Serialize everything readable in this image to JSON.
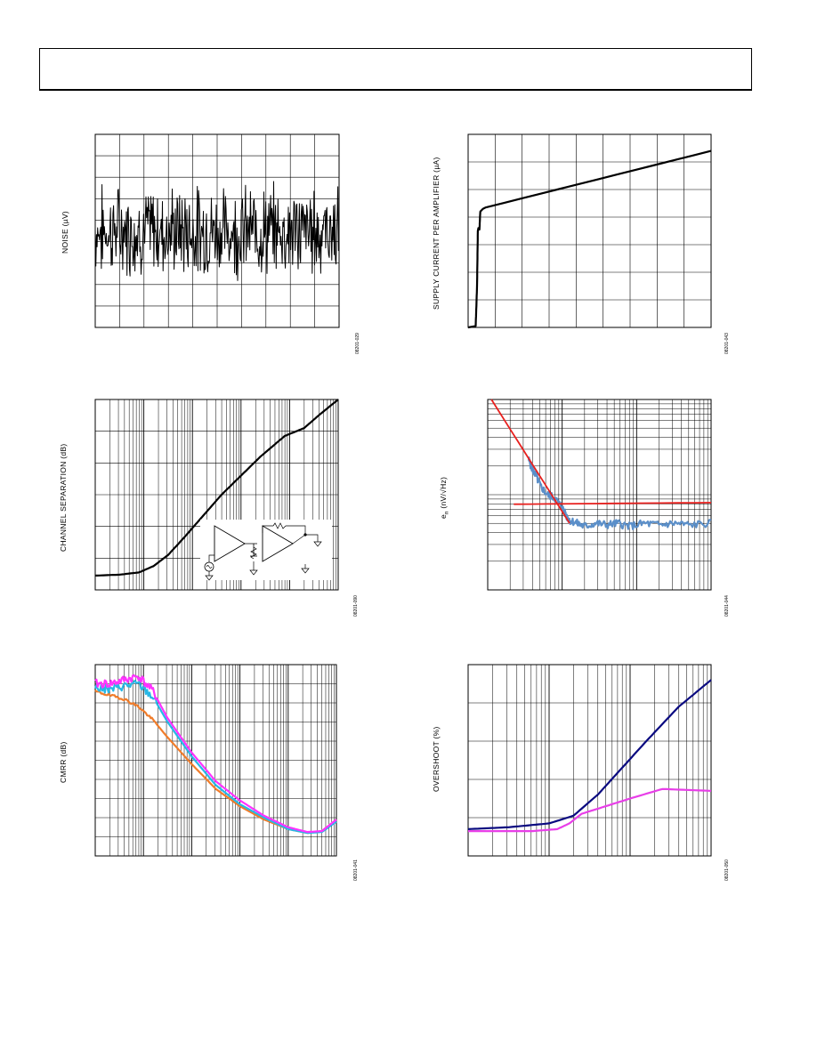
{
  "chart_data": [
    {
      "id": "noise",
      "type": "line",
      "ylabel": "NOISE (µV)",
      "xlabel": "",
      "figure_id": "08201-029",
      "grid": "linear",
      "x_divisions": 10,
      "y_divisions": 9,
      "xlim": [
        0,
        10
      ],
      "ylim": [
        -4.5,
        4.5
      ],
      "noise": {
        "seed": 7,
        "points": 400,
        "amplitude": 1.6
      },
      "series": [
        {
          "color": "#000000",
          "values": []
        }
      ]
    },
    {
      "id": "supply_current",
      "type": "line",
      "ylabel": "SUPPLY CURRENT PER AMPLIFIER (µA)",
      "xlabel": "",
      "figure_id": "08201-043",
      "grid": "linear",
      "x_divisions": 9,
      "y_divisions": 7,
      "xlim": [
        0,
        9
      ],
      "ylim": [
        0,
        7
      ],
      "series": [
        {
          "color": "#000000",
          "x": [
            0,
            0.28,
            0.33,
            0.36,
            0.38,
            0.42,
            0.45,
            0.55,
            0.65,
            9
          ],
          "y": [
            0,
            0.05,
            1.5,
            3.5,
            3.6,
            3.55,
            4.2,
            4.3,
            4.35,
            6.4
          ]
        }
      ]
    },
    {
      "id": "channel_separation",
      "type": "line",
      "ylabel": "CHANNEL SEPARATION (dB)",
      "xlabel": "",
      "figure_id": "08201-090",
      "grid": "log",
      "x_decades": 5,
      "y_divisions": 6,
      "xlim": [
        0,
        5
      ],
      "ylim": [
        0,
        6
      ],
      "series": [
        {
          "color": "#000000",
          "x": [
            0,
            0.5,
            0.9,
            1.2,
            1.5,
            1.8,
            2.2,
            2.6,
            3.0,
            3.4,
            3.9,
            4.3,
            4.6,
            5.0
          ],
          "y": [
            0.45,
            0.48,
            0.55,
            0.75,
            1.1,
            1.6,
            2.3,
            3.0,
            3.6,
            4.2,
            4.85,
            5.1,
            5.5,
            6.0
          ]
        }
      ],
      "inset": "op-amp-test-circuit"
    },
    {
      "id": "voltage_noise_density",
      "type": "line",
      "ylabel": "e_n (nV/√Hz)",
      "ylabel_main": "e",
      "ylabel_sub": "n",
      "ylabel_rest": " (nV/√Hz)",
      "xlabel": "",
      "figure_id": "08201-044",
      "grid": "log",
      "x_decades": 3,
      "y_log_decades": 2,
      "xlim": [
        0,
        3
      ],
      "ylim": [
        0,
        6
      ],
      "series": [
        {
          "color": "#5b8fc9",
          "x": [
            0.55,
            0.6,
            0.65,
            0.7,
            0.8,
            0.9,
            1.0,
            1.05,
            1.1,
            1.2,
            1.3,
            1.45,
            1.6,
            1.75,
            1.9,
            2.1,
            2.3,
            2.5,
            2.7,
            3.0
          ],
          "y": [
            4.1,
            3.8,
            3.6,
            3.3,
            3.0,
            2.9,
            2.6,
            2.35,
            2.2,
            2.1,
            2.0,
            2.1,
            2.05,
            2.1,
            2.0,
            2.1,
            2.05,
            2.1,
            2.05,
            2.1
          ]
        },
        {
          "color": "#e8201e",
          "x": [
            0.05,
            1.1
          ],
          "y": [
            6.0,
            2.1
          ]
        },
        {
          "color": "#e8201e",
          "x": [
            0.35,
            3.0
          ],
          "y": [
            2.7,
            2.75
          ]
        }
      ]
    },
    {
      "id": "cmrr",
      "type": "line",
      "ylabel": "CMRR (dB)",
      "xlabel": "",
      "figure_id": "08201-041",
      "grid": "log",
      "x_decades": 5,
      "y_divisions": 10,
      "xlim": [
        0,
        5
      ],
      "ylim": [
        0,
        10
      ],
      "series": [
        {
          "color": "#f07c2a",
          "x": [
            0,
            0.3,
            0.6,
            0.9,
            1.2,
            1.5,
            2.0,
            2.5,
            3.0,
            3.5,
            4.0,
            4.4,
            4.7,
            5.0
          ],
          "y": [
            8.6,
            8.4,
            8.2,
            7.8,
            7.1,
            6.2,
            4.8,
            3.5,
            2.6,
            1.9,
            1.4,
            1.2,
            1.3,
            1.9
          ]
        },
        {
          "color": "#27b7e6",
          "x": [
            0,
            0.3,
            0.6,
            0.9,
            1.2,
            1.5,
            2.0,
            2.5,
            3.0,
            3.5,
            4.0,
            4.4,
            4.7,
            5.0
          ],
          "y": [
            8.8,
            8.7,
            8.9,
            9.0,
            8.3,
            7.0,
            5.2,
            3.7,
            2.7,
            2.0,
            1.4,
            1.2,
            1.25,
            1.8
          ]
        },
        {
          "color": "#ff33ff",
          "x": [
            0,
            0.3,
            0.6,
            0.9,
            1.2,
            1.5,
            2.0,
            2.5,
            3.0,
            3.5,
            4.0,
            4.4,
            4.7,
            5.0
          ],
          "y": [
            9.0,
            9.0,
            9.2,
            9.4,
            8.6,
            7.2,
            5.4,
            3.9,
            2.9,
            2.1,
            1.5,
            1.25,
            1.3,
            1.9
          ]
        }
      ],
      "noise": {
        "seed": 19,
        "amplitude": 0.45,
        "until_x": 1.3
      }
    },
    {
      "id": "overshoot",
      "type": "line",
      "ylabel": "OVERSHOOT (%)",
      "xlabel": "",
      "figure_id": "08201-050",
      "grid": "log",
      "x_decades": 3,
      "y_divisions": 5,
      "xlim": [
        0,
        3
      ],
      "ylim": [
        0,
        5
      ],
      "series": [
        {
          "color": "#0a0a80",
          "x": [
            0,
            0.5,
            1.0,
            1.3,
            1.6,
            1.9,
            2.2,
            2.6,
            3.0
          ],
          "y": [
            0.7,
            0.75,
            0.85,
            1.05,
            1.6,
            2.3,
            3.0,
            3.9,
            4.6
          ]
        },
        {
          "color": "#e83ee8",
          "x": [
            0,
            0.8,
            1.1,
            1.25,
            1.4,
            1.7,
            2.0,
            2.4,
            3.0
          ],
          "y": [
            0.65,
            0.65,
            0.7,
            0.85,
            1.1,
            1.3,
            1.5,
            1.75,
            1.7
          ]
        }
      ]
    }
  ]
}
